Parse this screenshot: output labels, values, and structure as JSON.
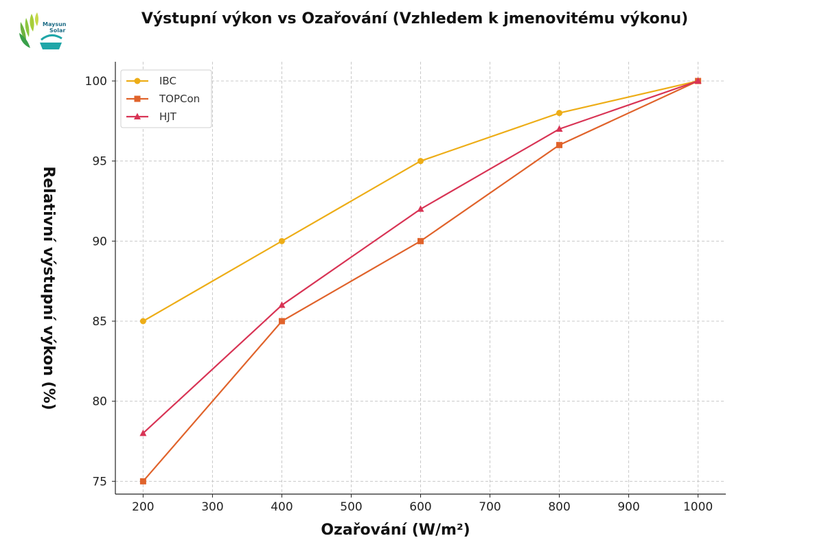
{
  "logo": {
    "line1": "Maysun",
    "line2": "Solar"
  },
  "chart_data": {
    "type": "line",
    "title": "Výstupní výkon vs Ozařování (Vzhledem k jmenovitému výkonu)",
    "xlabel": "Ozařování (W/m²)",
    "ylabel": "Relativní výstupní výkon (%)",
    "x": [
      200,
      400,
      600,
      800,
      1000
    ],
    "xlim": [
      160,
      1040
    ],
    "ylim": [
      74.2,
      101.2
    ],
    "xticks": [
      200,
      300,
      400,
      500,
      600,
      700,
      800,
      900,
      1000
    ],
    "yticks": [
      75,
      80,
      85,
      90,
      95,
      100
    ],
    "grid": true,
    "legend_position": "top-left",
    "series": [
      {
        "name": "IBC",
        "values": [
          85,
          90,
          95,
          98,
          100
        ],
        "color": "#EDAD17",
        "marker": "circle"
      },
      {
        "name": "TOPCon",
        "values": [
          75,
          85,
          90,
          96,
          100
        ],
        "color": "#E0632B",
        "marker": "square"
      },
      {
        "name": "HJT",
        "values": [
          78,
          86,
          92,
          97,
          100
        ],
        "color": "#D83455",
        "marker": "triangle"
      }
    ]
  }
}
